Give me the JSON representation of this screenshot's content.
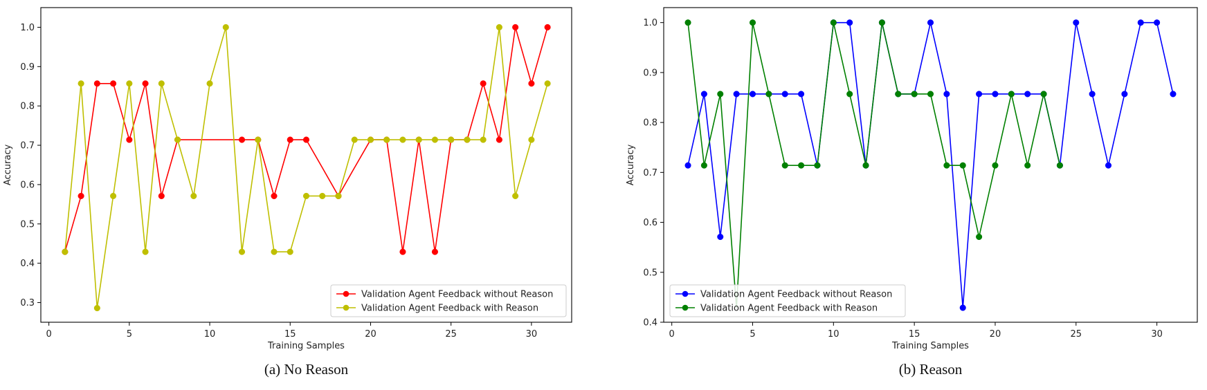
{
  "chart_data": [
    {
      "type": "line",
      "caption": "(a) No Reason",
      "xlabel": "Training Samples",
      "ylabel": "Accuracy",
      "xlim": [
        -0.5,
        32.5
      ],
      "ylim": [
        0.25,
        1.05
      ],
      "xticks": [
        0,
        5,
        10,
        15,
        20,
        25,
        30
      ],
      "yticks": [
        0.3,
        0.4,
        0.5,
        0.6,
        0.7,
        0.8,
        0.9,
        1.0
      ],
      "legend_position": "lower-right",
      "grid": false,
      "series": [
        {
          "name": "Validation Agent Feedback without Reason",
          "color": "#ff0000",
          "x": [
            1,
            2,
            3,
            4,
            5,
            6,
            7,
            8,
            9,
            10,
            11,
            12,
            13,
            14,
            15,
            16,
            17,
            18,
            19,
            20,
            21,
            22,
            23,
            24,
            25,
            26,
            27,
            28,
            29,
            30,
            31
          ],
          "y": [
            0.429,
            0.571,
            0.857,
            0.857,
            0.714,
            0.857,
            0.571,
            0.714,
            0.714,
            0.714,
            0.714,
            0.714,
            0.714,
            0.571,
            0.714,
            0.714,
            0.643,
            0.571,
            0.643,
            0.714,
            0.714,
            0.429,
            0.714,
            0.429,
            0.714,
            0.714,
            0.857,
            0.714,
            1.0,
            0.857,
            1.0
          ],
          "markers": [
            1,
            2,
            3,
            4,
            5,
            6,
            7,
            8,
            12,
            13,
            14,
            15,
            16,
            18,
            20,
            21,
            22,
            23,
            24,
            25,
            26,
            27,
            28,
            29,
            30,
            31
          ]
        },
        {
          "name": "Validation Agent Feedback with Reason",
          "color": "#bfbf00",
          "x": [
            1,
            2,
            3,
            4,
            5,
            6,
            7,
            8,
            9,
            10,
            11,
            12,
            13,
            14,
            15,
            16,
            17,
            18,
            19,
            20,
            21,
            22,
            23,
            24,
            25,
            26,
            27,
            28,
            29,
            30,
            31
          ],
          "y": [
            0.429,
            0.857,
            0.286,
            0.571,
            0.857,
            0.429,
            0.857,
            0.714,
            0.571,
            0.857,
            1.0,
            0.429,
            0.714,
            0.429,
            0.429,
            0.571,
            0.571,
            0.571,
            0.714,
            0.714,
            0.714,
            0.714,
            0.714,
            0.714,
            0.714,
            0.714,
            0.714,
            1.0,
            0.571,
            0.714,
            0.857
          ],
          "markers": [
            1,
            2,
            3,
            4,
            5,
            6,
            7,
            8,
            9,
            10,
            11,
            12,
            13,
            14,
            15,
            16,
            17,
            18,
            19,
            20,
            21,
            22,
            23,
            24,
            25,
            26,
            27,
            28,
            29,
            30,
            31
          ]
        }
      ]
    },
    {
      "type": "line",
      "caption": "(b) Reason",
      "xlabel": "Training Samples",
      "ylabel": "Accuracy",
      "xlim": [
        -0.5,
        32.5
      ],
      "ylim": [
        0.4,
        1.03
      ],
      "xticks": [
        0,
        5,
        10,
        15,
        20,
        25,
        30
      ],
      "yticks": [
        0.4,
        0.5,
        0.6,
        0.7,
        0.8,
        0.9,
        1.0
      ],
      "legend_position": "lower-left",
      "grid": false,
      "series": [
        {
          "name": "Validation Agent Feedback without Reason",
          "color": "#0000ff",
          "x": [
            1,
            2,
            3,
            4,
            5,
            6,
            7,
            8,
            9,
            10,
            11,
            12,
            13,
            14,
            15,
            16,
            17,
            18,
            19,
            20,
            21,
            22,
            23,
            24,
            25,
            26,
            27,
            28,
            29,
            30,
            31
          ],
          "y": [
            0.714,
            0.857,
            0.571,
            0.857,
            0.857,
            0.857,
            0.857,
            0.857,
            0.714,
            1.0,
            1.0,
            0.714,
            1.0,
            0.857,
            0.857,
            1.0,
            0.857,
            0.429,
            0.857,
            0.857,
            0.857,
            0.857,
            0.857,
            0.714,
            1.0,
            0.857,
            0.714,
            0.857,
            1.0,
            1.0,
            0.857
          ],
          "markers": [
            1,
            2,
            3,
            4,
            5,
            6,
            7,
            8,
            9,
            10,
            11,
            12,
            13,
            14,
            15,
            16,
            17,
            18,
            19,
            20,
            21,
            22,
            23,
            24,
            25,
            26,
            27,
            28,
            29,
            30,
            31
          ]
        },
        {
          "name": "Validation Agent Feedback with Reason",
          "color": "#008000",
          "x": [
            1,
            2,
            3,
            4,
            5,
            6,
            7,
            8,
            9,
            10,
            11,
            12,
            13,
            14,
            15,
            16,
            17,
            18,
            19,
            20,
            21,
            22,
            23,
            24
          ],
          "y": [
            1.0,
            0.714,
            0.857,
            0.429,
            1.0,
            0.857,
            0.714,
            0.714,
            0.714,
            1.0,
            0.857,
            0.714,
            1.0,
            0.857,
            0.857,
            0.857,
            0.714,
            0.714,
            0.571,
            0.714,
            0.857,
            0.714,
            0.857,
            0.714
          ],
          "markers": [
            1,
            2,
            3,
            5,
            6,
            7,
            8,
            9,
            10,
            11,
            12,
            13,
            14,
            15,
            16,
            17,
            18,
            19,
            20,
            21,
            22,
            23,
            24
          ]
        }
      ]
    }
  ]
}
